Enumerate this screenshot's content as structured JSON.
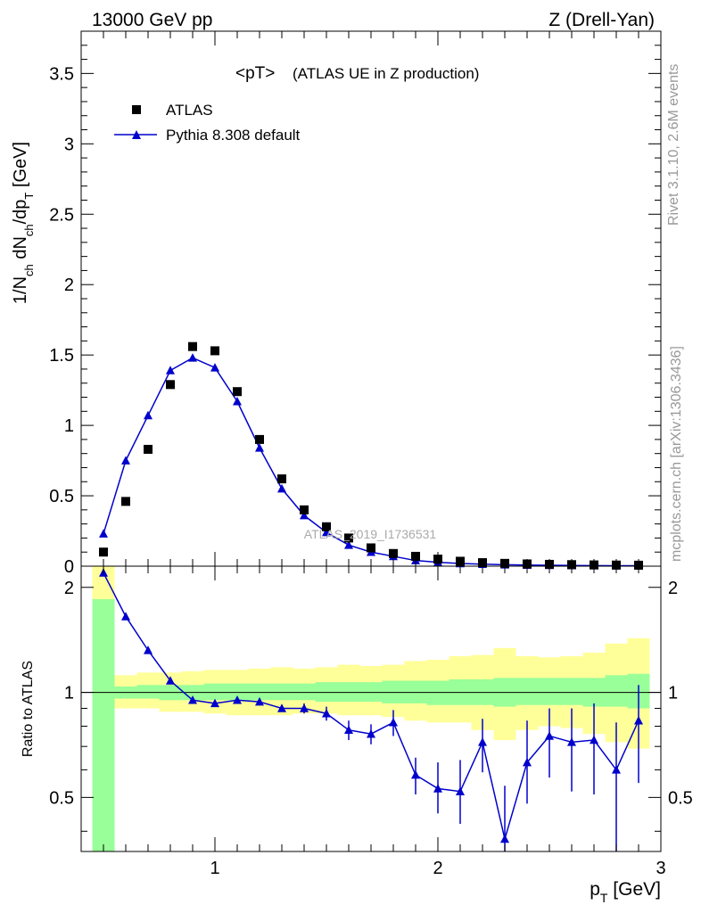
{
  "header": {
    "left": "13000 GeV pp",
    "right": "Z (Drell-Yan)"
  },
  "side_text": {
    "rivet": "Rivet 3.1.10,  2.6M events",
    "mcplots": "mcplots.cern.ch [arXiv:1306.3436]"
  },
  "plot_title": {
    "main": "<pT>",
    "sub": "(ATLAS UE in Z production)"
  },
  "watermark": "ATLAS_2019_I1736531",
  "legend": {
    "data_label": "ATLAS",
    "mc_label": "Pythia 8.308 default"
  },
  "colors": {
    "data": "#000000",
    "mc": "#0000cc",
    "band_inner": "#99ff99",
    "band_outer": "#ffff99"
  },
  "chart_data": [
    {
      "type": "scatter",
      "panel": "main",
      "ylabel_parts": [
        "1/N",
        "ch",
        " dN",
        "ch",
        "/dp",
        "T",
        " [GeV]"
      ],
      "xlim": [
        0.4,
        3.0
      ],
      "ylim": [
        0,
        3.8
      ],
      "yticks": [
        0,
        0.5,
        1,
        1.5,
        2,
        2.5,
        3,
        3.5
      ],
      "ytick_labels": [
        "0",
        "0.5",
        "1",
        "1.5",
        "2",
        "2.5",
        "3",
        "3.5"
      ],
      "series": [
        {
          "name": "ATLAS",
          "marker": "square",
          "x": [
            0.5,
            0.6,
            0.7,
            0.8,
            0.9,
            1.0,
            1.1,
            1.2,
            1.3,
            1.4,
            1.5,
            1.6,
            1.7,
            1.8,
            1.9,
            2.0,
            2.1,
            2.2,
            2.3,
            2.4,
            2.5,
            2.6,
            2.7,
            2.8,
            2.9
          ],
          "values": [
            0.1,
            0.46,
            0.83,
            1.29,
            1.56,
            1.53,
            1.24,
            0.9,
            0.62,
            0.4,
            0.28,
            0.2,
            0.13,
            0.09,
            0.07,
            0.05,
            0.035,
            0.025,
            0.02,
            0.016,
            0.013,
            0.011,
            0.009,
            0.008,
            0.007
          ]
        },
        {
          "name": "Pythia 8.308 default",
          "marker": "triangle",
          "x": [
            0.5,
            0.6,
            0.7,
            0.8,
            0.9,
            1.0,
            1.1,
            1.2,
            1.3,
            1.4,
            1.5,
            1.6,
            1.7,
            1.8,
            1.9,
            2.0,
            2.1,
            2.2,
            2.3,
            2.4,
            2.5,
            2.6,
            2.7,
            2.8,
            2.9
          ],
          "values": [
            0.23,
            0.75,
            1.07,
            1.39,
            1.48,
            1.41,
            1.17,
            0.84,
            0.55,
            0.36,
            0.24,
            0.15,
            0.1,
            0.07,
            0.04,
            0.028,
            0.019,
            0.014,
            0.01,
            0.008,
            0.006,
            0.005,
            0.004,
            0.003,
            0.003
          ]
        }
      ]
    },
    {
      "type": "scatter",
      "panel": "ratio",
      "xlabel_parts": [
        "p",
        "T",
        " [GeV]"
      ],
      "ylabel": "Ratio to ATLAS",
      "xlim": [
        0.4,
        3.0
      ],
      "ylim": [
        0.35,
        2.3
      ],
      "log_y": true,
      "xticks": [
        1,
        2,
        3
      ],
      "xtick_labels": [
        "1",
        "2",
        "3"
      ],
      "yticks": [
        0.5,
        1,
        2
      ],
      "ytick_labels": [
        "0.5",
        "1",
        "2"
      ],
      "band_edges": [
        0.45,
        0.55,
        0.65,
        0.75,
        0.85,
        0.95,
        1.05,
        1.15,
        1.25,
        1.35,
        1.45,
        1.55,
        1.65,
        1.75,
        1.85,
        1.95,
        2.05,
        2.15,
        2.25,
        2.35,
        2.45,
        2.55,
        2.65,
        2.75,
        2.85,
        2.95
      ],
      "band_inner": {
        "lo": [
          0.35,
          0.96,
          0.96,
          0.95,
          0.95,
          0.95,
          0.95,
          0.95,
          0.95,
          0.95,
          0.94,
          0.94,
          0.94,
          0.93,
          0.93,
          0.92,
          0.92,
          0.92,
          0.91,
          0.92,
          0.92,
          0.92,
          0.91,
          0.91,
          0.9
        ],
        "hi": [
          1.85,
          1.04,
          1.05,
          1.05,
          1.05,
          1.06,
          1.06,
          1.06,
          1.06,
          1.06,
          1.07,
          1.07,
          1.07,
          1.08,
          1.08,
          1.08,
          1.09,
          1.09,
          1.1,
          1.1,
          1.1,
          1.1,
          1.1,
          1.12,
          1.13
        ]
      },
      "band_outer": {
        "lo": [
          0.35,
          0.9,
          0.9,
          0.88,
          0.88,
          0.87,
          0.86,
          0.86,
          0.86,
          0.87,
          0.87,
          0.86,
          0.86,
          0.85,
          0.83,
          0.82,
          0.82,
          0.78,
          0.73,
          0.78,
          0.8,
          0.79,
          0.76,
          0.72,
          0.69
        ],
        "hi": [
          2.3,
          1.12,
          1.14,
          1.14,
          1.15,
          1.16,
          1.16,
          1.17,
          1.18,
          1.17,
          1.18,
          1.2,
          1.19,
          1.2,
          1.23,
          1.24,
          1.27,
          1.28,
          1.34,
          1.27,
          1.26,
          1.27,
          1.3,
          1.38,
          1.43
        ]
      },
      "series": [
        {
          "name": "Pythia 8.308 default",
          "marker": "triangle",
          "x": [
            0.5,
            0.6,
            0.7,
            0.8,
            0.9,
            1.0,
            1.1,
            1.2,
            1.3,
            1.4,
            1.5,
            1.6,
            1.7,
            1.8,
            1.9,
            2.0,
            2.1,
            2.2,
            2.3,
            2.4,
            2.5,
            2.6,
            2.7,
            2.8,
            2.9
          ],
          "values": [
            2.2,
            1.65,
            1.32,
            1.08,
            0.95,
            0.93,
            0.95,
            0.94,
            0.9,
            0.9,
            0.87,
            0.78,
            0.76,
            0.82,
            0.58,
            0.53,
            0.52,
            0.72,
            0.38,
            0.63,
            0.75,
            0.72,
            0.73,
            0.6,
            0.83
          ],
          "err_lo": [
            0.05,
            0.03,
            0.02,
            0.02,
            0.01,
            0.01,
            0.01,
            0.02,
            0.02,
            0.03,
            0.04,
            0.05,
            0.05,
            0.07,
            0.07,
            0.08,
            0.1,
            0.13,
            0.12,
            0.15,
            0.18,
            0.2,
            0.22,
            0.26,
            0.28
          ],
          "err_hi": [
            0.06,
            0.03,
            0.02,
            0.02,
            0.01,
            0.01,
            0.01,
            0.02,
            0.02,
            0.03,
            0.04,
            0.05,
            0.05,
            0.07,
            0.07,
            0.1,
            0.12,
            0.12,
            0.16,
            0.2,
            0.15,
            0.18,
            0.2,
            0.22,
            0.22
          ]
        }
      ]
    }
  ]
}
